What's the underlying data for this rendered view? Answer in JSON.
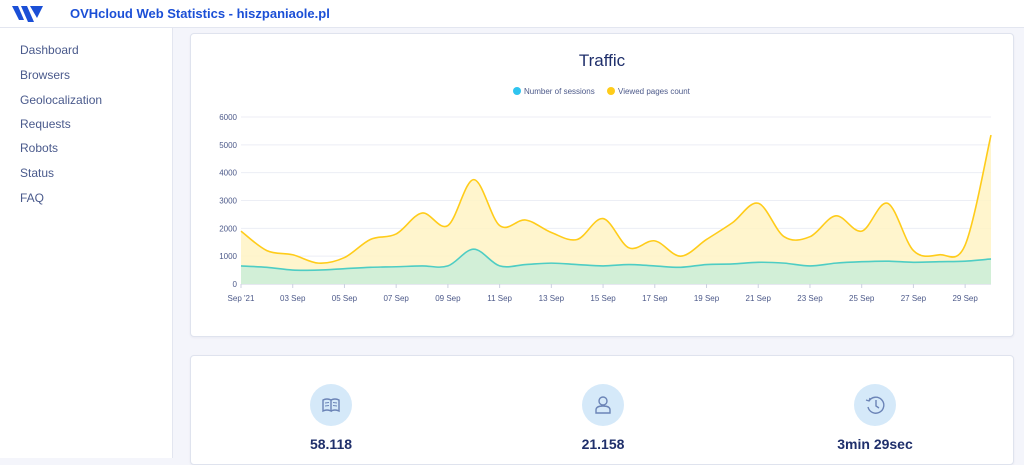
{
  "header": {
    "title": "OVHcloud Web Statistics - hiszpaniaole.pl",
    "logo": "ovh-logo"
  },
  "sidebar": {
    "items": [
      {
        "label": "Dashboard"
      },
      {
        "label": "Browsers"
      },
      {
        "label": "Geolocalization"
      },
      {
        "label": "Requests"
      },
      {
        "label": "Robots"
      },
      {
        "label": "Status"
      },
      {
        "label": "FAQ"
      }
    ]
  },
  "colors": {
    "sessions": "#4ecdc4",
    "sessions_legend": "#2fc4ef",
    "pages": "#ffcc1a",
    "brand": "#1b4fd6"
  },
  "chart_data": {
    "type": "area",
    "title": "Traffic",
    "x": [
      "Sep '21",
      "02 Sep",
      "03 Sep",
      "04 Sep",
      "05 Sep",
      "06 Sep",
      "07 Sep",
      "08 Sep",
      "09 Sep",
      "10 Sep",
      "11 Sep",
      "12 Sep",
      "13 Sep",
      "14 Sep",
      "15 Sep",
      "16 Sep",
      "17 Sep",
      "18 Sep",
      "19 Sep",
      "20 Sep",
      "21 Sep",
      "22 Sep",
      "23 Sep",
      "24 Sep",
      "25 Sep",
      "26 Sep",
      "27 Sep",
      "28 Sep",
      "29 Sep",
      "30 Sep"
    ],
    "xticks": [
      "Sep '21",
      "03 Sep",
      "05 Sep",
      "07 Sep",
      "09 Sep",
      "11 Sep",
      "13 Sep",
      "15 Sep",
      "17 Sep",
      "19 Sep",
      "21 Sep",
      "23 Sep",
      "25 Sep",
      "27 Sep",
      "29 Sep"
    ],
    "yticks": [
      0,
      1000,
      2000,
      3000,
      4000,
      5000,
      6000
    ],
    "ylim": [
      0,
      6000
    ],
    "series": [
      {
        "name": "Number of sessions",
        "values": [
          650,
          600,
          500,
          500,
          550,
          600,
          620,
          650,
          650,
          1250,
          650,
          700,
          750,
          700,
          650,
          700,
          650,
          600,
          700,
          720,
          780,
          750,
          650,
          750,
          800,
          820,
          780,
          800,
          820,
          900
        ]
      },
      {
        "name": "Viewed pages count",
        "values": [
          1900,
          1200,
          1050,
          750,
          950,
          1600,
          1800,
          2550,
          2100,
          3750,
          2100,
          2300,
          1850,
          1600,
          2350,
          1300,
          1550,
          1000,
          1600,
          2200,
          2900,
          1700,
          1700,
          2450,
          1900,
          2900,
          1200,
          1050,
          1400,
          5350
        ]
      }
    ]
  },
  "stats": [
    {
      "icon": "book-icon",
      "value": "58.118"
    },
    {
      "icon": "user-icon",
      "value": "21.158"
    },
    {
      "icon": "clock-icon",
      "value": "3min 29sec"
    }
  ]
}
